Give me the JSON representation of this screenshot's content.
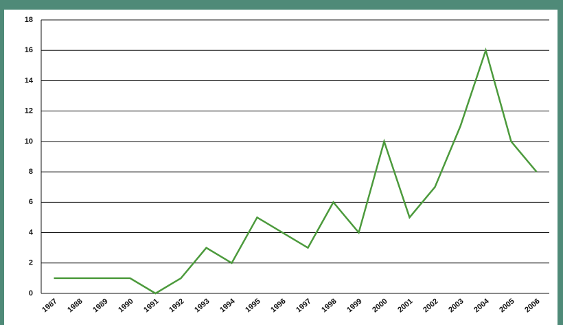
{
  "chart_data": {
    "type": "line",
    "categories": [
      "1987",
      "1988",
      "1989",
      "1990",
      "1991",
      "1992",
      "1993",
      "1994",
      "1995",
      "1996",
      "1997",
      "1998",
      "1999",
      "2000",
      "2001",
      "2002",
      "2003",
      "2004",
      "2005",
      "2006"
    ],
    "values": [
      1,
      1,
      1,
      1,
      0,
      1,
      3,
      2,
      5,
      4,
      3,
      6,
      4,
      10,
      5,
      7,
      11,
      16,
      10,
      8
    ],
    "color": "#4c9a3c",
    "ylim": [
      0,
      18
    ],
    "yticks": [
      0,
      2,
      4,
      6,
      8,
      10,
      12,
      14,
      16,
      18
    ],
    "grid": true
  }
}
